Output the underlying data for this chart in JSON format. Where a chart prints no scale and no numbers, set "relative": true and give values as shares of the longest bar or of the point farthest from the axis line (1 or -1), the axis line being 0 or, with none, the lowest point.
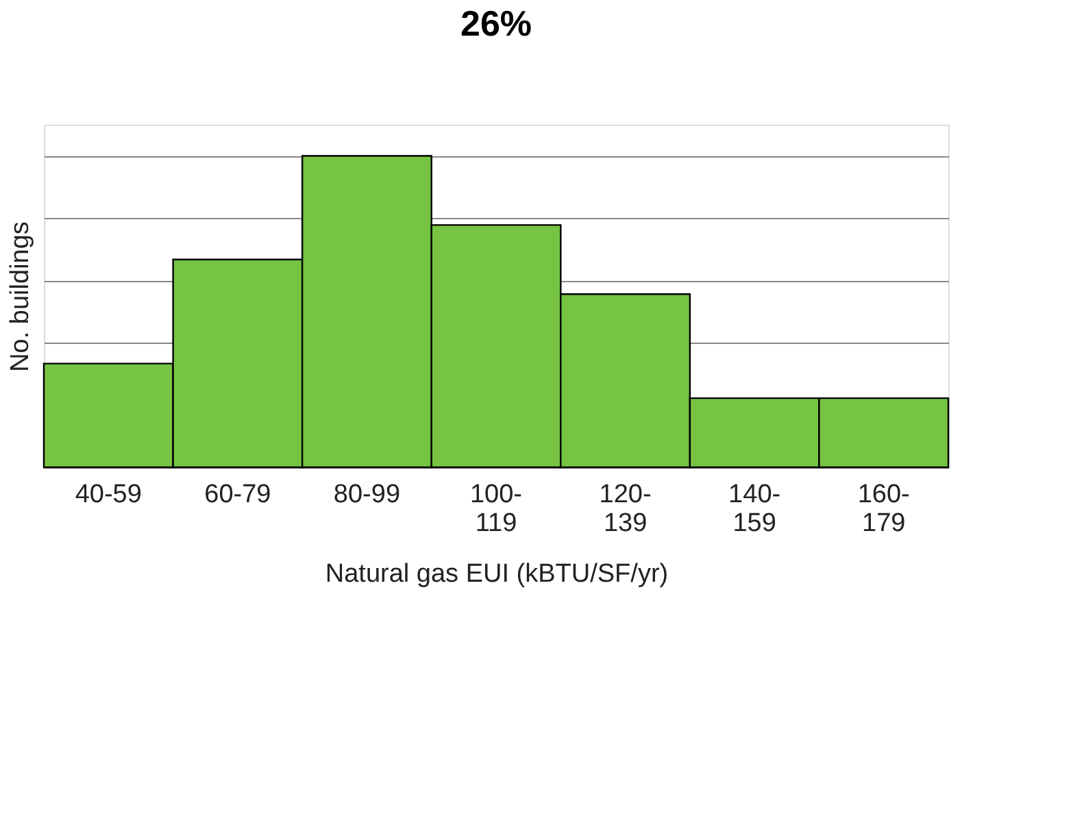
{
  "chart_data": {
    "type": "bar",
    "title": "26%",
    "xlabel": "Natural gas EUI (kBTU/SF/yr)",
    "ylabel": "No. buildings",
    "categories": [
      "40-59",
      "60-79",
      "80-99",
      "100-119",
      "120-139",
      "140-159",
      "160-179"
    ],
    "values": [
      0.333,
      0.667,
      1,
      0.778,
      0.556,
      0.222,
      0.222
    ],
    "color": "#76c442",
    "relative": true,
    "grid": "y"
  }
}
